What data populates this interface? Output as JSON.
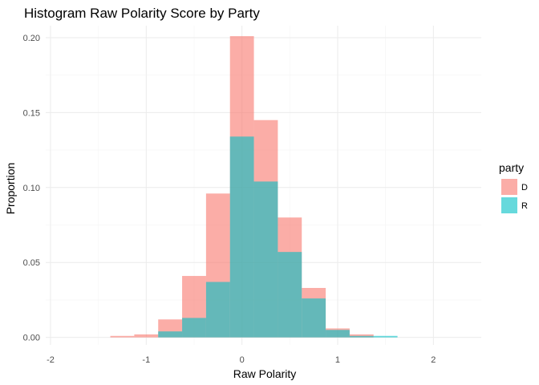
{
  "chart_data": {
    "type": "histogram",
    "title": "Histogram Raw Polarity Score by Party",
    "xlabel": "Raw Polarity",
    "ylabel": "Proportion",
    "xlim": [
      -2.05,
      2.5
    ],
    "ylim": [
      -0.005,
      0.208
    ],
    "x_ticks": [
      -2,
      -1,
      0,
      1,
      2
    ],
    "x_tick_labels": [
      "-2",
      "-1",
      "0",
      "1",
      "2"
    ],
    "y_ticks": [
      0.0,
      0.05,
      0.1,
      0.15,
      0.2
    ],
    "y_tick_labels": [
      "0.00",
      "0.05",
      "0.10",
      "0.15",
      "0.20"
    ],
    "bin_width": 0.25,
    "bin_starts": [
      -1.375,
      -1.125,
      -0.875,
      -0.625,
      -0.375,
      -0.125,
      0.125,
      0.375,
      0.625,
      0.875,
      1.125,
      1.375
    ],
    "grid": true,
    "legend": {
      "title": "party",
      "position": "right"
    },
    "series": [
      {
        "name": "D",
        "color": "#F8766D",
        "values": [
          0.001,
          0.002,
          0.012,
          0.041,
          0.096,
          0.201,
          0.145,
          0.08,
          0.033,
          0.006,
          0.002,
          0.0
        ]
      },
      {
        "name": "R",
        "color": "#00BFC4",
        "values": [
          0.0,
          0.0,
          0.004,
          0.013,
          0.037,
          0.134,
          0.104,
          0.057,
          0.026,
          0.005,
          0.001,
          0.001
        ]
      }
    ]
  }
}
